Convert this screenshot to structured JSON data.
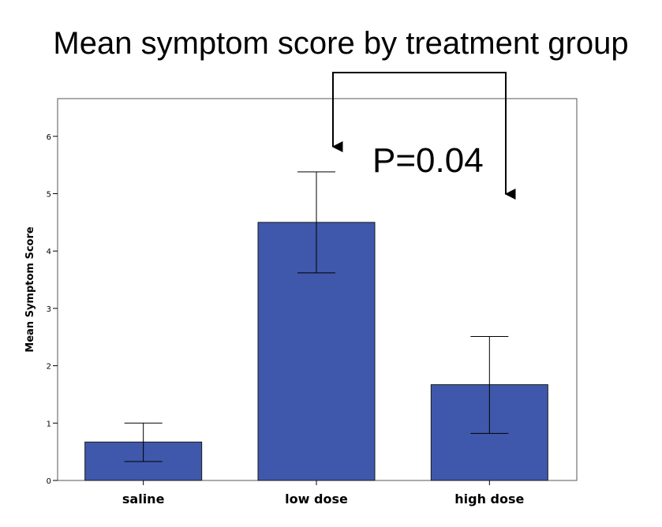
{
  "chart_data": {
    "type": "bar",
    "title": "Mean symptom score by treatment group",
    "xlabel": "",
    "ylabel": "Mean Symptom Score",
    "categories": [
      "saline",
      "low dose",
      "high dose"
    ],
    "values": [
      0.67,
      4.5,
      1.67
    ],
    "error_low": [
      0.33,
      3.62,
      0.82
    ],
    "error_high": [
      1.0,
      5.38,
      2.51
    ],
    "ylim": [
      0,
      6.6
    ],
    "yticks": [
      "0",
      "1",
      "2",
      "3",
      "4",
      "5",
      "6"
    ],
    "grid": false,
    "bar_color": "#3f58ab",
    "annotation": {
      "text": "P=0.04",
      "compares": [
        "low dose",
        "high dose"
      ]
    }
  }
}
